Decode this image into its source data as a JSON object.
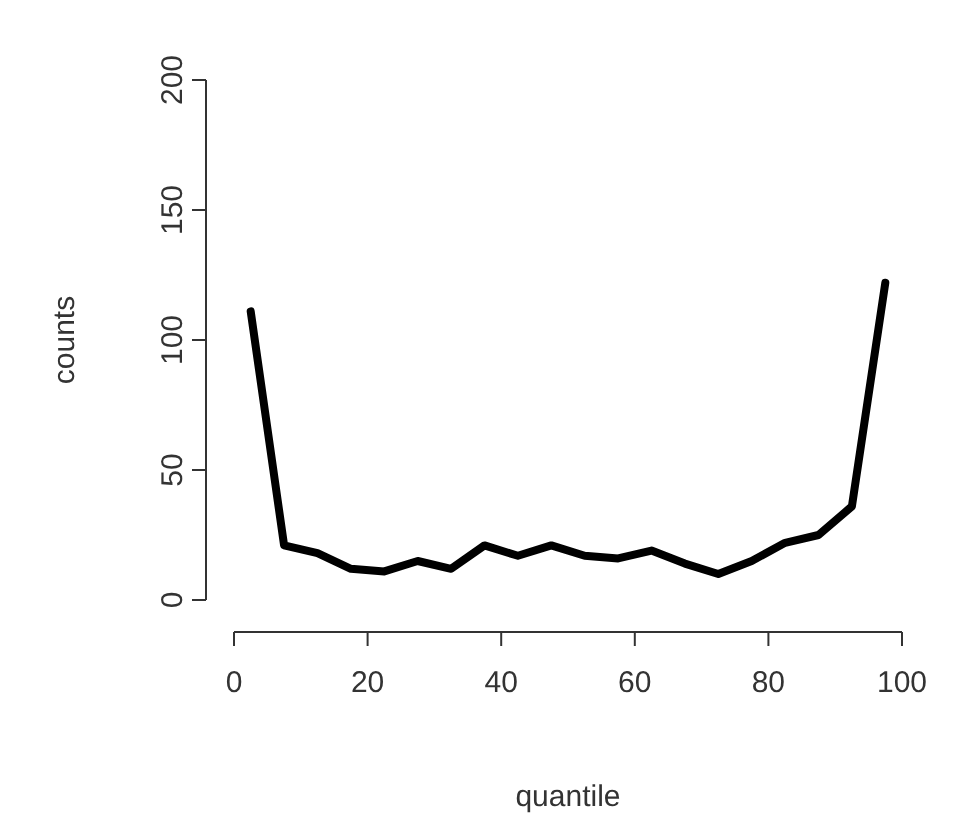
{
  "chart_data": {
    "type": "line",
    "xlabel": "quantile",
    "ylabel": "counts",
    "x": [
      2.5,
      7.5,
      12.5,
      17.5,
      22.5,
      27.5,
      32.5,
      37.5,
      42.5,
      47.5,
      52.5,
      57.5,
      62.5,
      67.5,
      72.5,
      77.5,
      82.5,
      87.5,
      92.5,
      97.5
    ],
    "series": [
      {
        "color": "#000000",
        "values": [
          111,
          21,
          18,
          12,
          11,
          15,
          12,
          21,
          17,
          21,
          17,
          16,
          19,
          14,
          10,
          15,
          22,
          25,
          36,
          122
        ]
      }
    ],
    "xlim": [
      0,
      100
    ],
    "xticks": [
      0,
      20,
      40,
      60,
      80,
      100
    ],
    "ylim": [
      0,
      200
    ],
    "yticks": [
      0,
      50,
      100,
      150,
      200
    ],
    "marker": "none",
    "line_style": "solid"
  }
}
